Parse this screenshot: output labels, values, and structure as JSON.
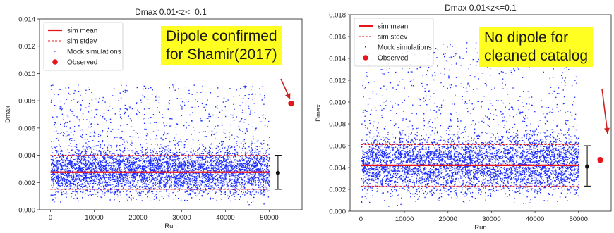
{
  "figures": [
    {
      "callout": [
        "Dipole confirmed",
        "for Shamir(2017)"
      ],
      "annotation_color": "#cc2222"
    },
    {
      "callout": [
        "No dipole for",
        "cleaned catalog"
      ],
      "annotation_color": "#cc2222"
    }
  ],
  "chart_data": [
    {
      "type": "scatter",
      "title": "Dmax  0.01<z<=0.1",
      "xlabel": "Run",
      "ylabel": "Dmax",
      "xlim": [
        -2500,
        57500
      ],
      "ylim": [
        0,
        0.014
      ],
      "xticks": [
        0,
        10000,
        20000,
        30000,
        40000,
        50000
      ],
      "yticks": [
        0.0,
        0.002,
        0.004,
        0.006,
        0.008,
        0.01,
        0.012,
        0.014
      ],
      "ytick_labels": [
        "0.000",
        "0.002",
        "0.004",
        "0.006",
        "0.008",
        "0.010",
        "0.012",
        "0.014"
      ],
      "legend": {
        "placement": "top-left",
        "entries": [
          "sim mean",
          "sim stdev",
          "Mock simulations",
          "Observed"
        ]
      },
      "sim_mean": 0.00275,
      "sim_stdev_lines": [
        0.0015,
        0.004
      ],
      "mock_runs": [
        0,
        50000
      ],
      "mock_range": [
        0.0,
        0.0092
      ],
      "errorbar": {
        "x": 52000,
        "mean": 0.0027,
        "low": 0.0015,
        "high": 0.004
      },
      "observed": {
        "x": 55000,
        "y": 0.0078
      },
      "grid": false,
      "colors": {
        "mock": "#1a2cff",
        "mean": "#e8141c",
        "observed": "#e8141c",
        "errorbar": "#000000"
      }
    },
    {
      "type": "scatter",
      "title": "Dmax  0.01<z<=0.1",
      "xlabel": "Run",
      "ylabel": "Dmax",
      "xlim": [
        -2500,
        57500
      ],
      "ylim": [
        0,
        0.018
      ],
      "xticks": [
        0,
        10000,
        20000,
        30000,
        40000,
        50000
      ],
      "yticks": [
        0.0,
        0.002,
        0.004,
        0.006,
        0.008,
        0.01,
        0.012,
        0.014,
        0.016,
        0.018
      ],
      "ytick_labels": [
        "0.000",
        "0.002",
        "0.004",
        "0.006",
        "0.008",
        "0.010",
        "0.012",
        "0.014",
        "0.016",
        "0.018"
      ],
      "legend": {
        "placement": "top-left",
        "entries": [
          "sim mean",
          "sim stdev",
          "Mock simulations",
          "Observed"
        ]
      },
      "sim_mean": 0.0042,
      "sim_stdev_lines": [
        0.0023,
        0.0061
      ],
      "mock_runs": [
        0,
        50000
      ],
      "mock_range": [
        0.0,
        0.0155
      ],
      "errorbar": {
        "x": 52000,
        "mean": 0.0041,
        "low": 0.0023,
        "high": 0.006
      },
      "observed": {
        "x": 55000,
        "y": 0.0047
      },
      "grid": false,
      "colors": {
        "mock": "#1a2cff",
        "mean": "#e8141c",
        "observed": "#e8141c",
        "errorbar": "#000000"
      }
    }
  ]
}
